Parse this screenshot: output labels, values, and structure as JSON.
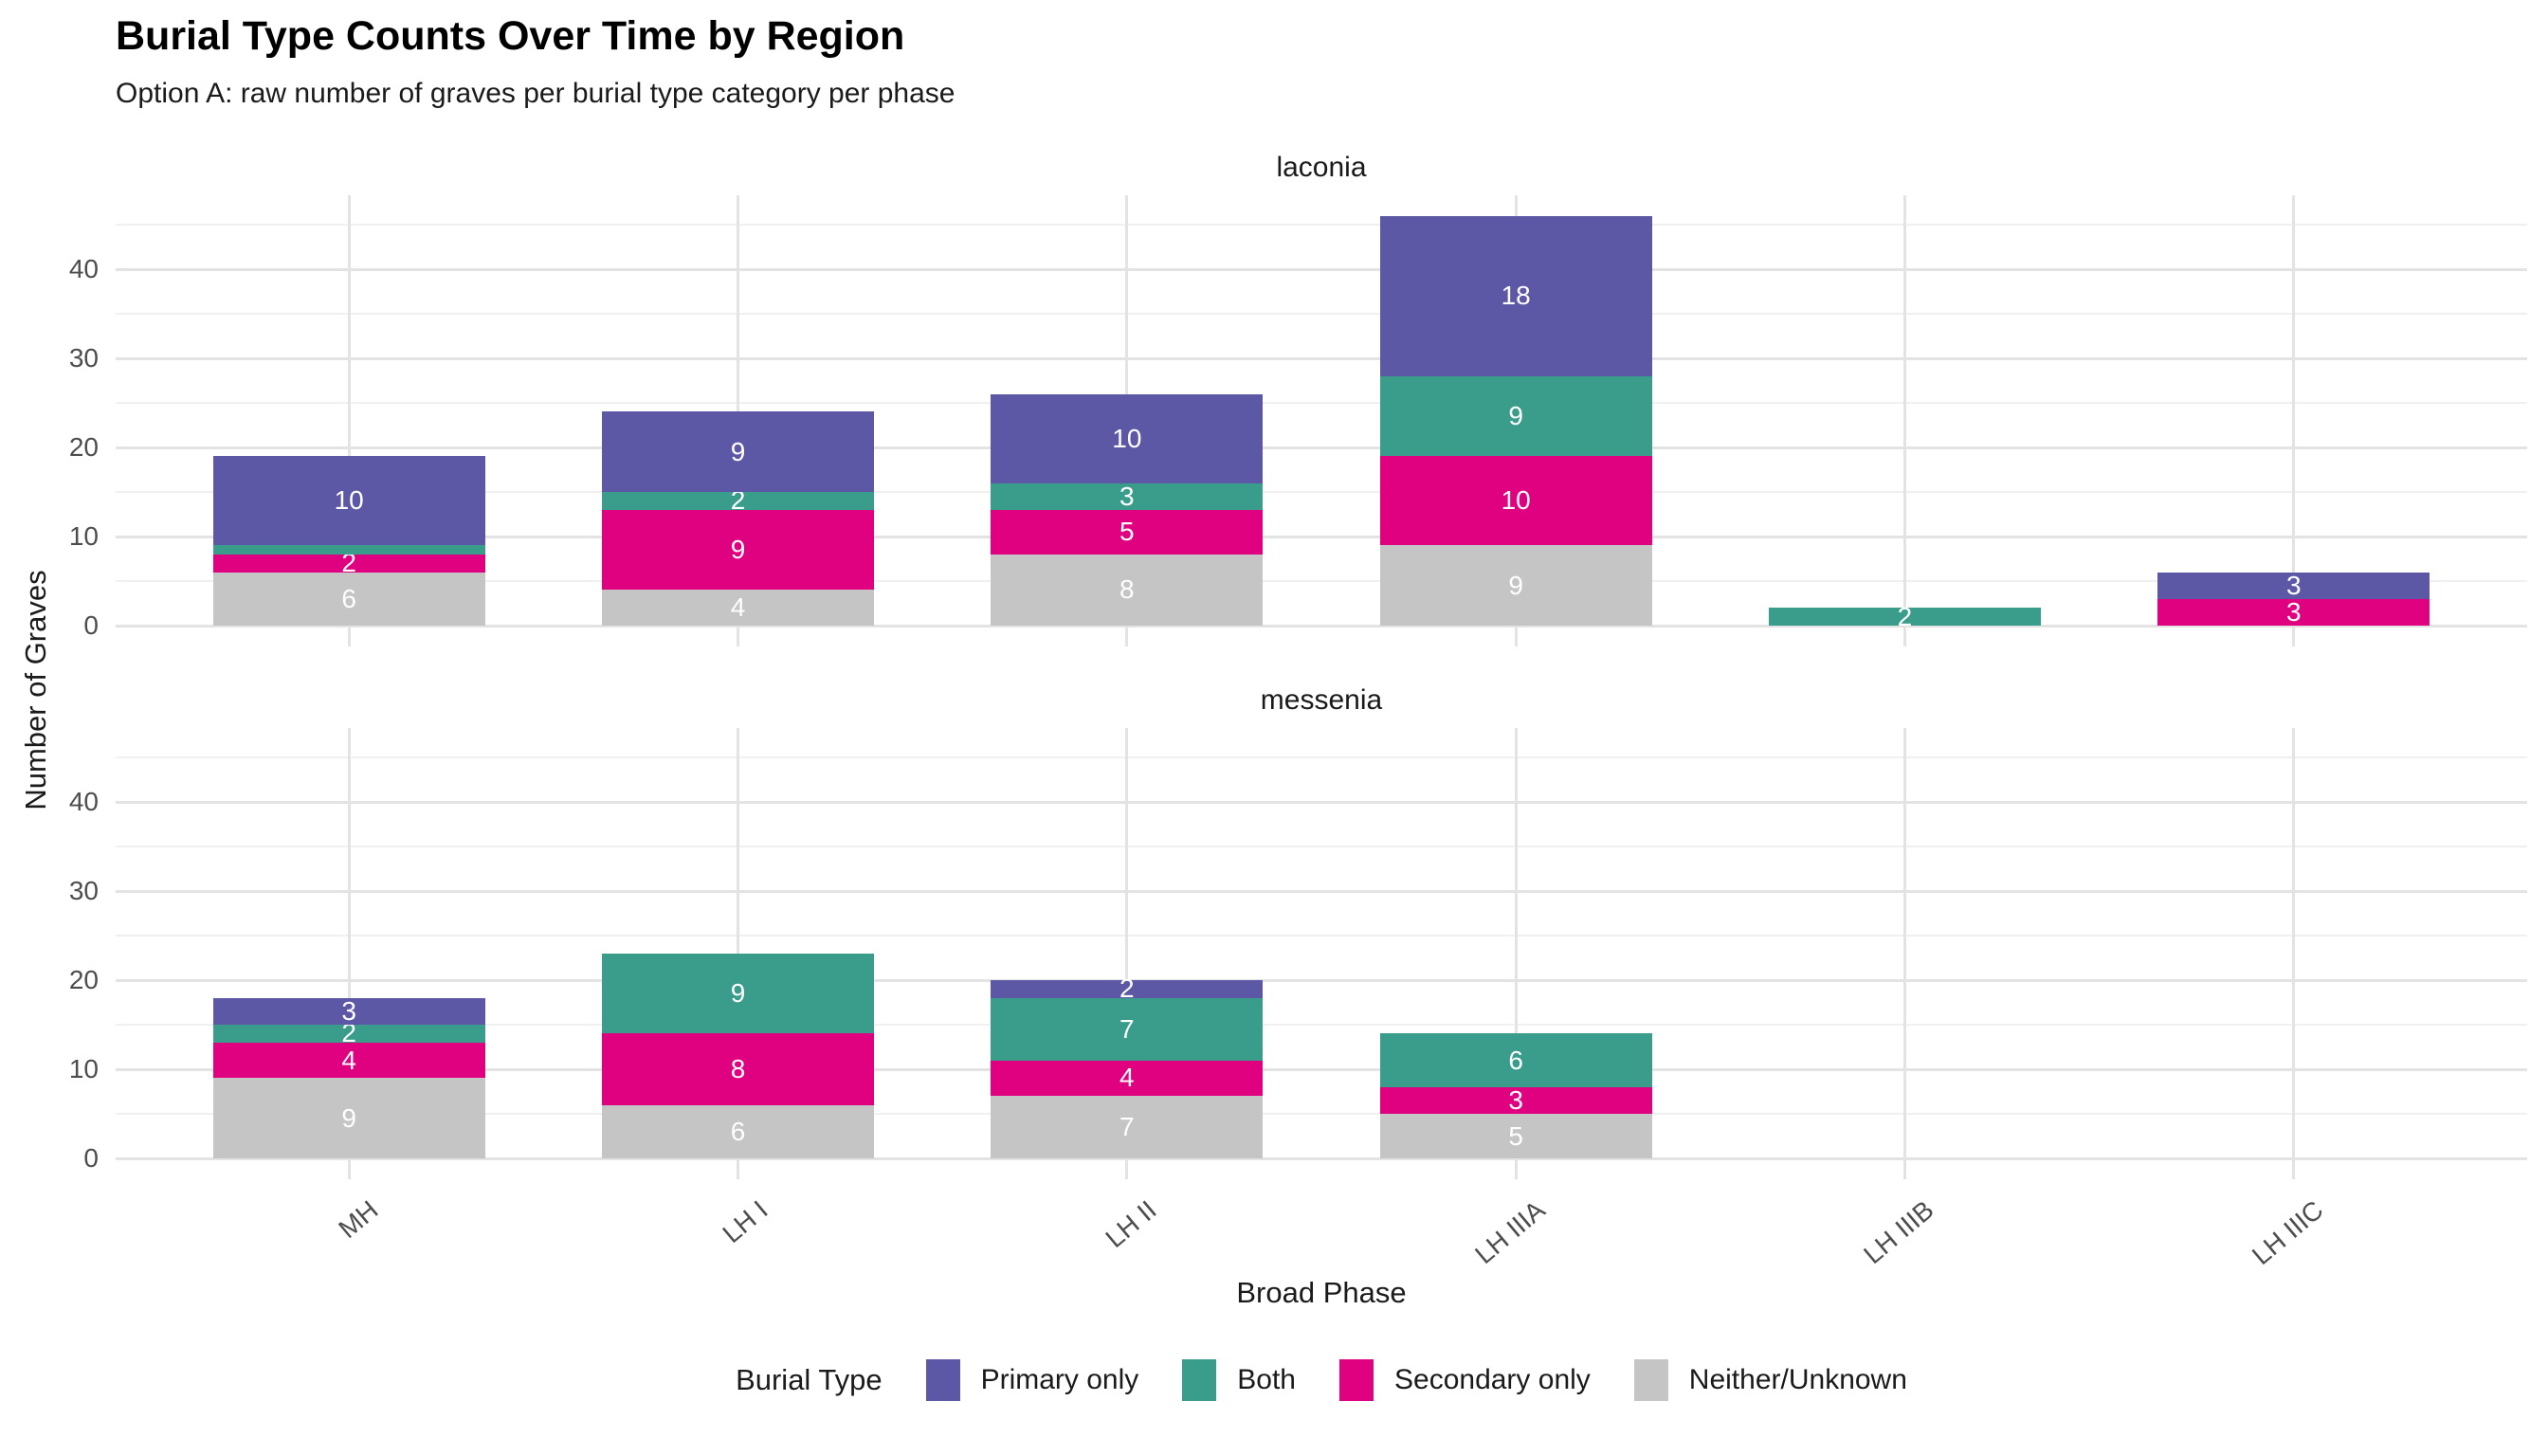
{
  "title": "Burial Type Counts Over Time by Region",
  "subtitle": "Option A: raw number of graves per burial type category per phase",
  "axes": {
    "x_title": "Broad Phase",
    "y_title": "Number of Graves"
  },
  "legend": {
    "title": "Burial Type",
    "items": [
      {
        "label": "Primary only",
        "color": "#5D58A6"
      },
      {
        "label": "Both",
        "color": "#3A9D8B"
      },
      {
        "label": "Secondary only",
        "color": "#DF0180"
      },
      {
        "label": "Neither/Unknown",
        "color": "#C5C5C5"
      }
    ]
  },
  "chart_data": {
    "type": "bar",
    "stacked": true,
    "title": "Burial Type Counts Over Time by Region",
    "subtitle": "Option A: raw number of graves per burial type category per phase",
    "xlabel": "Broad Phase",
    "ylabel": "Number of Graves",
    "categories": [
      "MH",
      "LH I",
      "LH II",
      "LH IIIA",
      "LH IIIB",
      "LH IIIC"
    ],
    "y_ticks": [
      0,
      10,
      20,
      30,
      40
    ],
    "ylim": [
      0,
      46
    ],
    "grid": "major+minor",
    "legend_position": "bottom",
    "stack_order_bottom_to_top": [
      "Neither/Unknown",
      "Secondary only",
      "Both",
      "Primary only"
    ],
    "facets": [
      {
        "label": "laconia",
        "bars": [
          {
            "category": "MH",
            "segments": [
              {
                "type": "Neither/Unknown",
                "value": 6,
                "label": "6"
              },
              {
                "type": "Secondary only",
                "value": 2,
                "label": "2"
              },
              {
                "type": "Both",
                "value": 1,
                "label": ""
              },
              {
                "type": "Primary only",
                "value": 10,
                "label": "10"
              }
            ]
          },
          {
            "category": "LH I",
            "segments": [
              {
                "type": "Neither/Unknown",
                "value": 4,
                "label": "4"
              },
              {
                "type": "Secondary only",
                "value": 9,
                "label": "9"
              },
              {
                "type": "Both",
                "value": 2,
                "label": "2"
              },
              {
                "type": "Primary only",
                "value": 9,
                "label": "9"
              }
            ]
          },
          {
            "category": "LH II",
            "segments": [
              {
                "type": "Neither/Unknown",
                "value": 8,
                "label": "8"
              },
              {
                "type": "Secondary only",
                "value": 5,
                "label": "5"
              },
              {
                "type": "Both",
                "value": 3,
                "label": "3"
              },
              {
                "type": "Primary only",
                "value": 10,
                "label": "10"
              }
            ]
          },
          {
            "category": "LH IIIA",
            "segments": [
              {
                "type": "Neither/Unknown",
                "value": 9,
                "label": "9"
              },
              {
                "type": "Secondary only",
                "value": 10,
                "label": "10"
              },
              {
                "type": "Both",
                "value": 9,
                "label": "9"
              },
              {
                "type": "Primary only",
                "value": 18,
                "label": "18"
              }
            ]
          },
          {
            "category": "LH IIIB",
            "segments": [
              {
                "type": "Both",
                "value": 2,
                "label": "2"
              }
            ]
          },
          {
            "category": "LH IIIC",
            "segments": [
              {
                "type": "Secondary only",
                "value": 3,
                "label": "3"
              },
              {
                "type": "Primary only",
                "value": 3,
                "label": "3"
              }
            ]
          }
        ]
      },
      {
        "label": "messenia",
        "bars": [
          {
            "category": "MH",
            "segments": [
              {
                "type": "Neither/Unknown",
                "value": 9,
                "label": "9"
              },
              {
                "type": "Secondary only",
                "value": 4,
                "label": "4"
              },
              {
                "type": "Both",
                "value": 2,
                "label": "2"
              },
              {
                "type": "Primary only",
                "value": 3,
                "label": "3"
              }
            ]
          },
          {
            "category": "LH I",
            "segments": [
              {
                "type": "Neither/Unknown",
                "value": 6,
                "label": "6"
              },
              {
                "type": "Secondary only",
                "value": 8,
                "label": "8"
              },
              {
                "type": "Both",
                "value": 9,
                "label": "9"
              }
            ]
          },
          {
            "category": "LH II",
            "segments": [
              {
                "type": "Neither/Unknown",
                "value": 7,
                "label": "7"
              },
              {
                "type": "Secondary only",
                "value": 4,
                "label": "4"
              },
              {
                "type": "Both",
                "value": 7,
                "label": "7"
              },
              {
                "type": "Primary only",
                "value": 2,
                "label": "2"
              }
            ]
          },
          {
            "category": "LH IIIA",
            "segments": [
              {
                "type": "Neither/Unknown",
                "value": 5,
                "label": "5"
              },
              {
                "type": "Secondary only",
                "value": 3,
                "label": "3"
              },
              {
                "type": "Both",
                "value": 6,
                "label": "6"
              }
            ]
          },
          {
            "category": "LH IIIB",
            "segments": []
          },
          {
            "category": "LH IIIC",
            "segments": []
          }
        ]
      }
    ]
  }
}
